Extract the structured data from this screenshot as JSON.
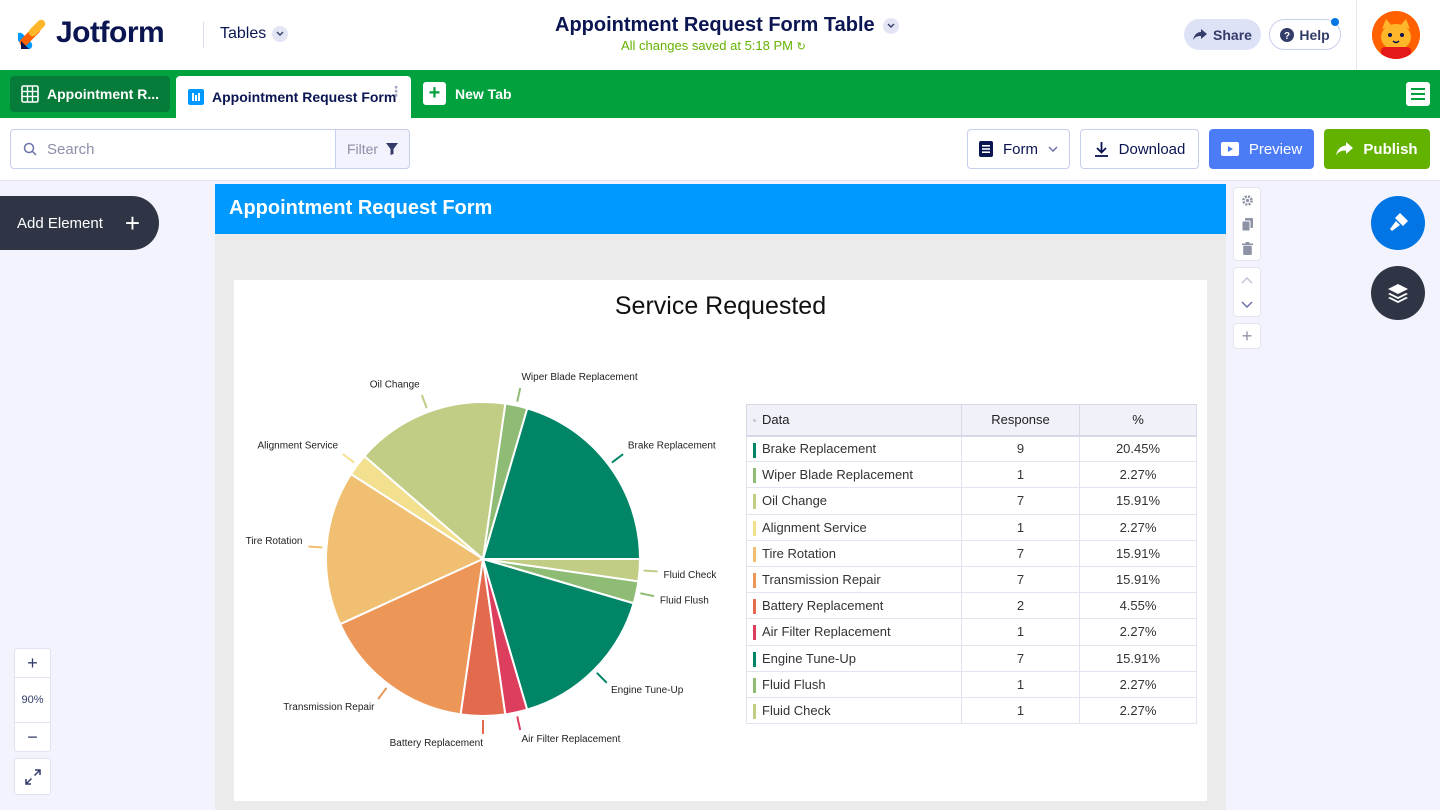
{
  "header": {
    "brand": "Jotform",
    "tables_label": "Tables",
    "doc_title": "Appointment Request Form Table",
    "saved_status": "All changes saved at 5:18 PM",
    "share_label": "Share",
    "help_label": "Help"
  },
  "tabs": {
    "items": [
      {
        "label": "Appointment R...",
        "icon": "table-grid-icon"
      },
      {
        "label": "Appointment Request Form",
        "icon": "report-chart-icon"
      }
    ],
    "new_tab_label": "New Tab"
  },
  "toolbar": {
    "search_placeholder": "Search",
    "filter_label": "Filter",
    "form_label": "Form",
    "download_label": "Download",
    "preview_label": "Preview",
    "publish_label": "Publish"
  },
  "sidebar": {
    "add_element_label": "Add Element",
    "zoom_level": "90%"
  },
  "report": {
    "form_title": "Appointment Request Form",
    "chart_title": "Service Requested",
    "table_headers": {
      "data": "Data",
      "response": "Response",
      "percent": "%"
    }
  },
  "chart_data": {
    "type": "pie",
    "title": "Service Requested",
    "slices": [
      {
        "label": "Brake Replacement",
        "value": 9,
        "percent": "20.45%",
        "color": "#008566"
      },
      {
        "label": "Wiper Blade Replacement",
        "value": 1,
        "percent": "2.27%",
        "color": "#8fbc75"
      },
      {
        "label": "Oil Change",
        "value": 7,
        "percent": "15.91%",
        "color": "#c1cc85"
      },
      {
        "label": "Alignment Service",
        "value": 1,
        "percent": "2.27%",
        "color": "#f2e08e"
      },
      {
        "label": "Tire Rotation",
        "value": 7,
        "percent": "15.91%",
        "color": "#f1bf71"
      },
      {
        "label": "Transmission Repair",
        "value": 7,
        "percent": "15.91%",
        "color": "#ec9758"
      },
      {
        "label": "Battery Replacement",
        "value": 2,
        "percent": "4.55%",
        "color": "#e46a4d"
      },
      {
        "label": "Air Filter Replacement",
        "value": 1,
        "percent": "2.27%",
        "color": "#de3e5d"
      },
      {
        "label": "Engine Tune-Up",
        "value": 7,
        "percent": "15.91%",
        "color": "#008566"
      },
      {
        "label": "Fluid Flush",
        "value": 1,
        "percent": "2.27%",
        "color": "#8fbc75"
      },
      {
        "label": "Fluid Check",
        "value": 1,
        "percent": "2.27%",
        "color": "#c1cc85"
      }
    ]
  }
}
